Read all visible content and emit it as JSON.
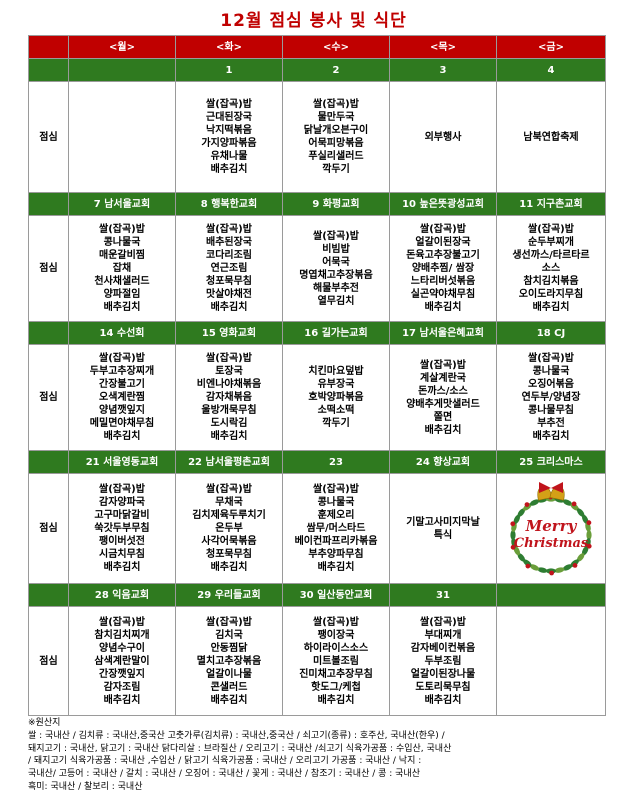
{
  "title": "12월 점심 봉사 및 식단",
  "row_label": "점심",
  "days": [
    "<월>",
    "<화>",
    "<수>",
    "<목>",
    "<금>"
  ],
  "weeks": [
    {
      "dates": [
        "",
        "1",
        "2",
        "3",
        "4"
      ],
      "cells": [
        [],
        [
          "쌀(잡곡)밥",
          "근대된장국",
          "낙지떡볶음",
          "가지양파볶음",
          "유채나물",
          "배추김치"
        ],
        [
          "쌀(잡곡)밥",
          "물만두국",
          "닭날개오븐구이",
          "어묵피망볶음",
          "푸실리샐러드",
          "깍두기"
        ],
        [
          "외부행사"
        ],
        [
          "남북연합축제"
        ]
      ]
    },
    {
      "dates": [
        "7 남서울교회",
        "8 행복한교회",
        "9 화평교회",
        "10 높은뜻광성교회",
        "11 지구촌교회"
      ],
      "cells": [
        [
          "쌀(잡곡)밥",
          "콩나물국",
          "매운갈비찜",
          "잡채",
          "천사채샐러드",
          "양파절임",
          "배추김치"
        ],
        [
          "쌀(잡곡)밥",
          "배추된장국",
          "코다리조림",
          "연근조림",
          "청포묵무침",
          "맛살야채전",
          "배추김치"
        ],
        [
          "쌀(잡곡)밥",
          "비빔밥",
          "어묵국",
          "명엽채고추장볶음",
          "해물부추전",
          "열무김치"
        ],
        [
          "쌀(잡곡)밥",
          "얼갈이된장국",
          "돈육고추장불고기",
          "양배추찜/ 쌈장",
          "느타리버섯볶음",
          "실곤약야채무침",
          "배추김치"
        ],
        [
          "쌀(잡곡)밥",
          "순두부찌개",
          "생선까스/타르타르",
          "소스",
          "참치김치볶음",
          "오이도라지무침",
          "배추김치"
        ]
      ]
    },
    {
      "dates": [
        "14 수선회",
        "15 영화교회",
        "16 길가는교회",
        "17 남서울은혜교회",
        "18 CJ"
      ],
      "cells": [
        [
          "쌀(잡곡)밥",
          "두부고추장찌개",
          "간장불고기",
          "오색계란찜",
          "양념깻잎지",
          "메밀면야채무침",
          "배추김치"
        ],
        [
          "쌀(잡곡)밥",
          "토장국",
          "비엔나야채볶음",
          "감자채볶음",
          "울방개묵무침",
          "도시락김",
          "배추김치"
        ],
        [
          "치킨마요덮밥",
          "유부장국",
          "호박양파볶음",
          "소떡소떡",
          "깍두기"
        ],
        [
          "쌀(잡곡)밥",
          "계살계란국",
          "돈까스/소스",
          "양배추게맛샐러드",
          "쫄면",
          "배추김치"
        ],
        [
          "쌀(잡곡)밥",
          "콩나물국",
          "오징어볶음",
          "연두부/양념장",
          "콩나물무침",
          "부추전",
          "배추김치"
        ]
      ]
    },
    {
      "dates": [
        "21 서울영동교회",
        "22 남서울평촌교회",
        "23",
        "24 향상교회",
        "25 크리스마스"
      ],
      "cells": [
        [
          "쌀(잡곡)밥",
          "감자양파국",
          "고구마닭갈비",
          "쑥갓두부무침",
          "팽이버섯전",
          "시금치무침",
          "배추김치"
        ],
        [
          "쌀(잡곡)밥",
          "무채국",
          "김치제육두루치기",
          "온두부",
          "사각어묵볶음",
          "청포묵무침",
          "배추김치"
        ],
        [
          "쌀(잡곡)밥",
          "콩나물국",
          "훈제오리",
          "쌈무/머스타드",
          "베이컨파프리카볶음",
          "부추양파무침",
          "배추김치"
        ],
        [
          "기말고사미지막날",
          "특식"
        ],
        []
      ],
      "xmas_text": [
        "Merry",
        "Christmas"
      ]
    },
    {
      "dates": [
        "28 익음교회",
        "29 우리들교회",
        "30 일산동안교회",
        "31",
        ""
      ],
      "cells": [
        [
          "쌀(잡곡)밥",
          "참치김치찌개",
          "양념수구이",
          "삼색계란말이",
          "간장깻잎지",
          "감자조림",
          "배추김치"
        ],
        [
          "쌀(잡곡)밥",
          "김치국",
          "안동찜닭",
          "멸치고추장볶음",
          "얼갈이나물",
          "콘샐러드",
          "배추김치"
        ],
        [
          "쌀(잡곡)밥",
          "팽이장국",
          "하이라이스소스",
          "미트볼조림",
          "진미채고추장무침",
          "핫도그/케첩",
          "배추김치"
        ],
        [
          "쌀(잡곡)밥",
          "부대찌개",
          "감자베이컨볶음",
          "두부조림",
          "얼갈이된장나물",
          "도토리묵무침",
          "배추김치"
        ],
        []
      ]
    }
  ],
  "footer": {
    "lines": [
      "※원산지",
      "쌀 : 국내산 / 김치류 : 국내산,중국산 고춧가루(김치류) : 국내산,중국산 / 쇠고기(종류) : 호주산, 국내산(한우) /",
      "돼지고기 : 국내산, 닭고기 : 국내산 닭다리살 : 브라질산 / 오리고기 : 국내산 /쇠고기 식육가공품 : 수입산, 국내산",
      "/ 돼지고기 식육가공품 : 국내산 ,수입산 / 닭고기 식육가공품 : 국내산 / 오리고기 가공품 : 국내산 / 낙지 :",
      "국내산/ 고등어 : 국내산 / 갈치 : 국내산 / 오징어 : 국내산 / 꽃게 : 국내산 / 참조기 : 국내산 / 콩 : 국내산",
      "흑미: 국내산 / 찰보리 : 국내산"
    ]
  },
  "colors": {
    "title": "#c00000",
    "header_bg": "#c00000",
    "date_bg": "#2f7a1f",
    "xmas_red": "#c0141c",
    "xmas_green": "#2e7d32"
  }
}
